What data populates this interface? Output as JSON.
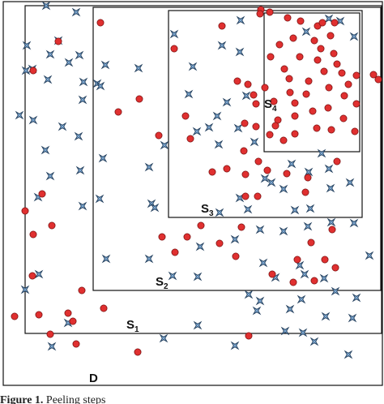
{
  "caption": {
    "prefix": "Figure 1.",
    "text": "Peeling steps"
  },
  "regions": [
    {
      "name": "D",
      "base": "D",
      "sub": ""
    },
    {
      "name": "S1",
      "base": "S",
      "sub": "1"
    },
    {
      "name": "S2",
      "base": "S",
      "sub": "2"
    },
    {
      "name": "S3",
      "base": "S",
      "sub": "3"
    },
    {
      "name": "S4",
      "base": "S",
      "sub": "4"
    }
  ],
  "colors": {
    "circle_fill": "#e03030",
    "circle_stroke": "#7a1010",
    "star_fill": "#7da7d0",
    "star_stroke": "#24405e",
    "box_stroke": "#111111"
  },
  "icons": {
    "circle": "red-circle-point",
    "star": "blue-four-point-star"
  }
}
